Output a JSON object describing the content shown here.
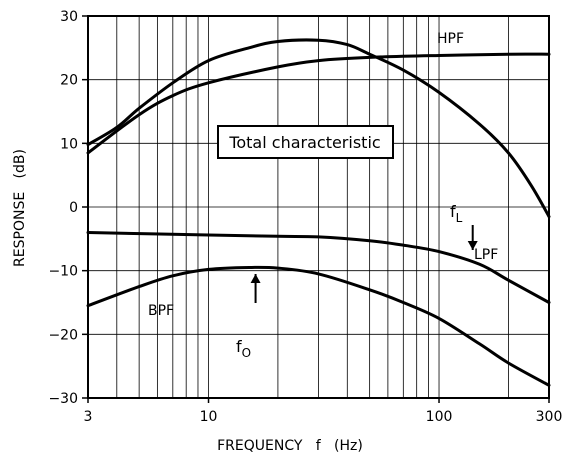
{
  "chart_data": {
    "type": "line",
    "xlabel": "FREQUENCY   f   (Hz)",
    "ylabel": "RESPONSE   (dB)",
    "xscale": "log",
    "xlim": [
      3,
      300
    ],
    "ylim": [
      -30,
      30
    ],
    "grid": true,
    "x_ticks": [
      3,
      10,
      100,
      300
    ],
    "x_tick_labels": [
      "3",
      "10",
      "100",
      "300"
    ],
    "y_ticks": [
      30,
      20,
      10,
      0,
      -10,
      -20,
      -30
    ],
    "y_tick_labels": [
      "30",
      "20",
      "10",
      "0",
      "−10",
      "−20",
      "−30"
    ],
    "series": [
      {
        "name": "HPF",
        "points": [
          [
            3,
            8.5
          ],
          [
            5,
            14.5
          ],
          [
            7,
            17.5
          ],
          [
            10,
            19.5
          ],
          [
            20,
            22
          ],
          [
            30,
            23
          ],
          [
            50,
            23.5
          ],
          [
            100,
            23.8
          ],
          [
            200,
            24
          ],
          [
            300,
            24
          ]
        ]
      },
      {
        "name": "Total characteristic",
        "points": [
          [
            3,
            9.8
          ],
          [
            4,
            12.5
          ],
          [
            5,
            15.5
          ],
          [
            7,
            19.5
          ],
          [
            10,
            23
          ],
          [
            15,
            25
          ],
          [
            20,
            26
          ],
          [
            30,
            26.2
          ],
          [
            40,
            25.5
          ],
          [
            50,
            24
          ],
          [
            70,
            21.5
          ],
          [
            100,
            18
          ],
          [
            150,
            13
          ],
          [
            200,
            8.5
          ],
          [
            250,
            3.5
          ],
          [
            300,
            -1.5
          ]
        ]
      },
      {
        "name": "LPF",
        "points": [
          [
            3,
            -4
          ],
          [
            10,
            -4.4
          ],
          [
            20,
            -4.6
          ],
          [
            30,
            -4.7
          ],
          [
            50,
            -5.3
          ],
          [
            70,
            -6
          ],
          [
            100,
            -7
          ],
          [
            150,
            -9
          ],
          [
            200,
            -11.5
          ],
          [
            300,
            -15
          ]
        ]
      },
      {
        "name": "BPF",
        "points": [
          [
            3,
            -15.5
          ],
          [
            5,
            -12.5
          ],
          [
            7,
            -10.8
          ],
          [
            10,
            -9.8
          ],
          [
            15,
            -9.5
          ],
          [
            20,
            -9.6
          ],
          [
            30,
            -10.5
          ],
          [
            50,
            -13
          ],
          [
            70,
            -15
          ],
          [
            100,
            -17.5
          ],
          [
            150,
            -21.5
          ],
          [
            200,
            -24.5
          ],
          [
            300,
            -28
          ]
        ]
      }
    ],
    "annotations": {
      "hpf_label": "HPF",
      "total_label": "Total characteristic",
      "lpf_label": "LPF",
      "bpf_label": "BPF",
      "fl_main": "f",
      "fl_sub": "L",
      "fl_x": 140,
      "fo_main": "f",
      "fo_sub": "O",
      "fo_x": 16
    }
  }
}
